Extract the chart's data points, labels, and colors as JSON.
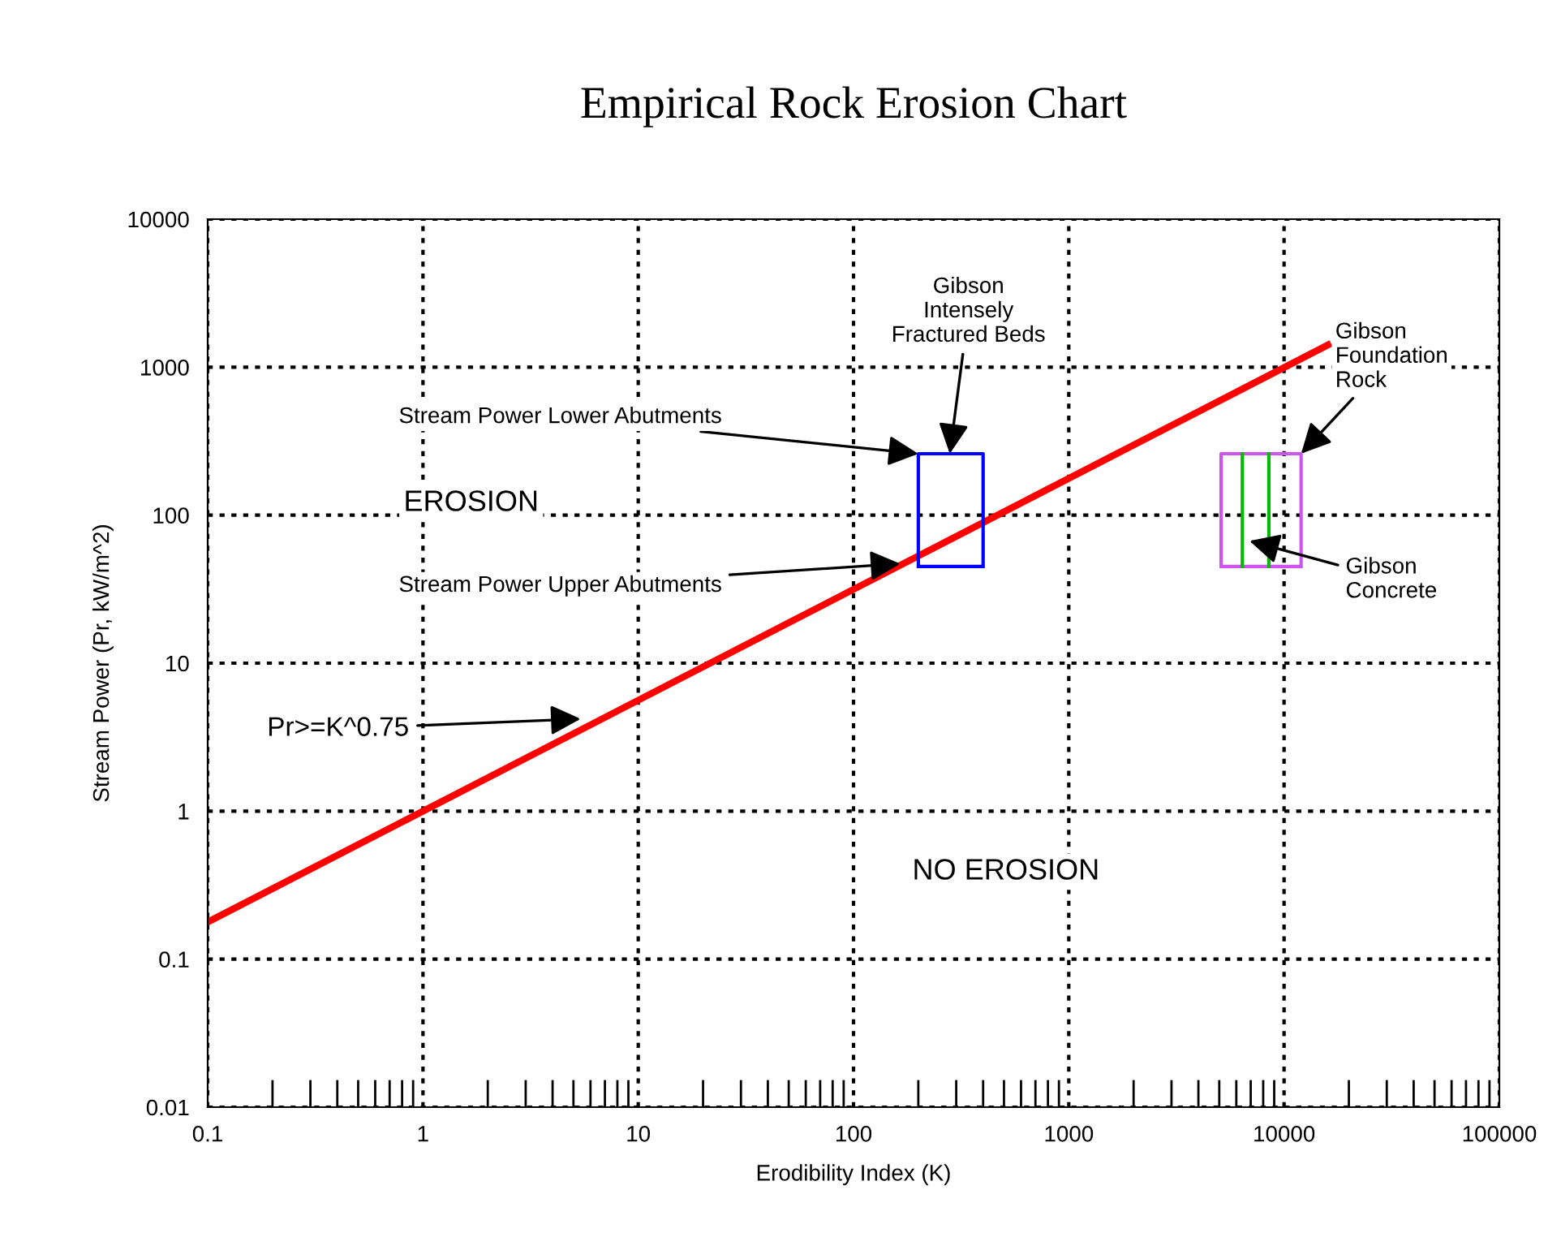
{
  "chart_data": {
    "type": "line",
    "title": "Empirical Rock Erosion Chart",
    "xlabel": "Erodibility Index (K)",
    "ylabel": "Stream Power (Pr, kW/m^2)",
    "log": "xy",
    "xlim": [
      0.1,
      100000
    ],
    "ylim": [
      0.01,
      10000
    ],
    "xticks": [
      0.1,
      1,
      10,
      100,
      1000,
      10000,
      100000
    ],
    "yticks": [
      0.01,
      0.1,
      1,
      10,
      100,
      1000,
      10000
    ],
    "grid": true,
    "marker": "none",
    "line_style": "solid",
    "series": [
      {
        "color": "#ff0000",
        "x": [
          0.1,
          16000
        ],
        "values": [
          0.178,
          1414
        ]
      },
      {
        "color": "#0000ff",
        "x": [
          200,
          200,
          400,
          400,
          null,
          200,
          400
        ],
        "values": [
          45,
          260,
          260,
          45,
          null,
          45,
          45
        ]
      },
      {
        "color": "#cc55ee",
        "x": [
          5100,
          5100,
          12000,
          12000,
          null,
          5100,
          12000
        ],
        "values": [
          45,
          260,
          260,
          45,
          null,
          45,
          45
        ]
      },
      {
        "color": "#00bb00",
        "x": [
          6400,
          6400,
          null,
          8500,
          8500
        ],
        "values": [
          45,
          260,
          null,
          45,
          260
        ]
      }
    ],
    "annotations": [
      {
        "text": "Stream Power Lower Abutments",
        "x": 200,
        "y": 260
      },
      {
        "text": "Stream Power Upper Abutments",
        "x": 165,
        "y": 47
      },
      {
        "text": "Gibson\nIntensely\nFractured Beds",
        "x": 280,
        "y": 260
      },
      {
        "text": "Gibson\nFoundation\nRock",
        "x": 12000,
        "y": 260
      },
      {
        "text": "Gibson\nConcrete",
        "x": 6900,
        "y": 67
      },
      {
        "text": "Pr>=K^0.75",
        "x": 5.4,
        "y": 4.2
      },
      "EROSION",
      "NO EROSION"
    ]
  }
}
